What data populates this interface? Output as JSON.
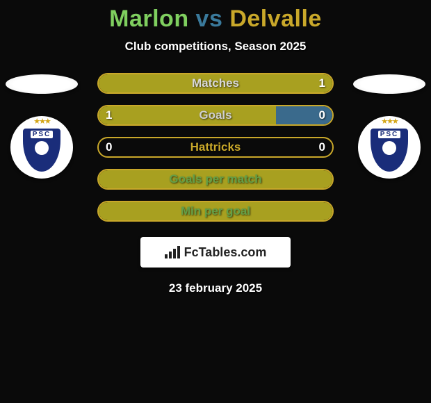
{
  "title": {
    "player1": "Marlon",
    "vs": " vs ",
    "player2": "Delvalle",
    "color_p1": "#7fcf5f",
    "color_vs": "#3a7a9c",
    "color_p2": "#c9a82a"
  },
  "subtitle": "Club competitions, Season 2025",
  "date": "23 february 2025",
  "logo_text": "FcTables.com",
  "club_badge": {
    "label": "PSC",
    "shield_color": "#1a2d7a"
  },
  "colors": {
    "fill_p1": "#a8a020",
    "border_p1": "#c9a82a",
    "fill_p2": "#3a6a8c",
    "border_label": "#d8d8d8"
  },
  "rows": [
    {
      "label": "Matches",
      "v1": null,
      "v2": "1",
      "p1_pct": 0,
      "p2_pct": 100,
      "border_color": "#c9a82a",
      "fill_color": "#a8a020",
      "fill_side": "full",
      "label_color": "#d8d8d8"
    },
    {
      "label": "Goals",
      "v1": "1",
      "v2": "0",
      "p1_pct": 76,
      "p2_pct": 24,
      "border_color": "#c9a82a",
      "fill_color": "#a8a020",
      "right_fill_color": "#3a6a8c",
      "fill_side": "split",
      "label_color": "#d0d0d0"
    },
    {
      "label": "Hattricks",
      "v1": "0",
      "v2": "0",
      "p1_pct": 0,
      "p2_pct": 0,
      "border_color": "#c9a82a",
      "fill_color": "transparent",
      "fill_side": "none",
      "label_color": "#c9a82a"
    },
    {
      "label": "Goals per match",
      "v1": null,
      "v2": null,
      "p1_pct": 100,
      "p2_pct": 0,
      "border_color": "#c9a82a",
      "fill_color": "#a8a020",
      "fill_side": "full",
      "label_color": "#64a048"
    },
    {
      "label": "Min per goal",
      "v1": null,
      "v2": null,
      "p1_pct": 100,
      "p2_pct": 0,
      "border_color": "#c9a82a",
      "fill_color": "#a8a020",
      "fill_side": "full",
      "label_color": "#64a048"
    }
  ]
}
